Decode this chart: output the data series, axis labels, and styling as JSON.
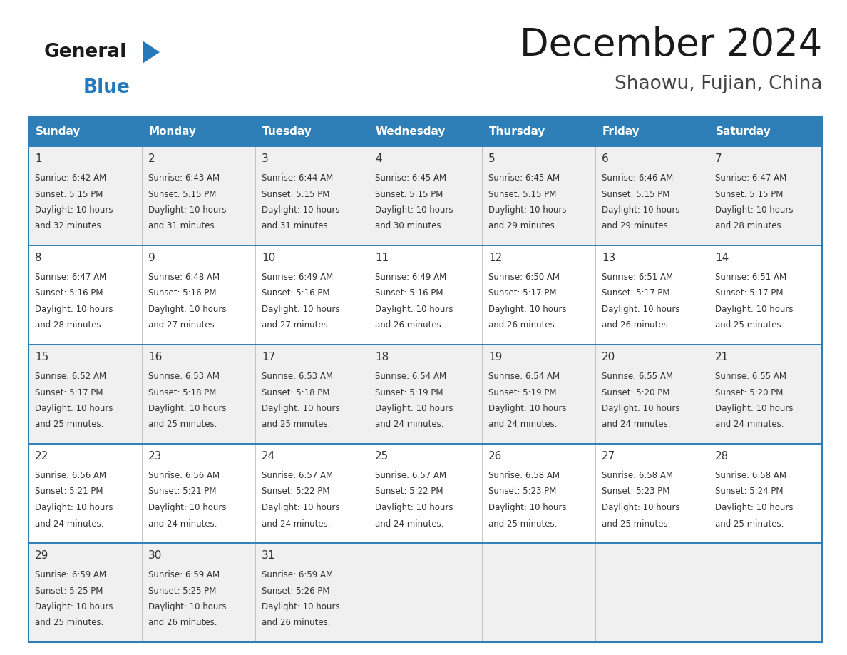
{
  "title": "December 2024",
  "subtitle": "Shaowu, Fujian, China",
  "header_bg_color": "#2E7EB8",
  "header_text_color": "#FFFFFF",
  "row_bg_even": "#F0F0F0",
  "row_bg_odd": "#FFFFFF",
  "day_names": [
    "Sunday",
    "Monday",
    "Tuesday",
    "Wednesday",
    "Thursday",
    "Friday",
    "Saturday"
  ],
  "weeks": [
    [
      {
        "day": 1,
        "sunrise": "6:42 AM",
        "sunset": "5:15 PM",
        "daylight_line1": "Daylight: 10 hours",
        "daylight_line2": "and 32 minutes."
      },
      {
        "day": 2,
        "sunrise": "6:43 AM",
        "sunset": "5:15 PM",
        "daylight_line1": "Daylight: 10 hours",
        "daylight_line2": "and 31 minutes."
      },
      {
        "day": 3,
        "sunrise": "6:44 AM",
        "sunset": "5:15 PM",
        "daylight_line1": "Daylight: 10 hours",
        "daylight_line2": "and 31 minutes."
      },
      {
        "day": 4,
        "sunrise": "6:45 AM",
        "sunset": "5:15 PM",
        "daylight_line1": "Daylight: 10 hours",
        "daylight_line2": "and 30 minutes."
      },
      {
        "day": 5,
        "sunrise": "6:45 AM",
        "sunset": "5:15 PM",
        "daylight_line1": "Daylight: 10 hours",
        "daylight_line2": "and 29 minutes."
      },
      {
        "day": 6,
        "sunrise": "6:46 AM",
        "sunset": "5:15 PM",
        "daylight_line1": "Daylight: 10 hours",
        "daylight_line2": "and 29 minutes."
      },
      {
        "day": 7,
        "sunrise": "6:47 AM",
        "sunset": "5:15 PM",
        "daylight_line1": "Daylight: 10 hours",
        "daylight_line2": "and 28 minutes."
      }
    ],
    [
      {
        "day": 8,
        "sunrise": "6:47 AM",
        "sunset": "5:16 PM",
        "daylight_line1": "Daylight: 10 hours",
        "daylight_line2": "and 28 minutes."
      },
      {
        "day": 9,
        "sunrise": "6:48 AM",
        "sunset": "5:16 PM",
        "daylight_line1": "Daylight: 10 hours",
        "daylight_line2": "and 27 minutes."
      },
      {
        "day": 10,
        "sunrise": "6:49 AM",
        "sunset": "5:16 PM",
        "daylight_line1": "Daylight: 10 hours",
        "daylight_line2": "and 27 minutes."
      },
      {
        "day": 11,
        "sunrise": "6:49 AM",
        "sunset": "5:16 PM",
        "daylight_line1": "Daylight: 10 hours",
        "daylight_line2": "and 26 minutes."
      },
      {
        "day": 12,
        "sunrise": "6:50 AM",
        "sunset": "5:17 PM",
        "daylight_line1": "Daylight: 10 hours",
        "daylight_line2": "and 26 minutes."
      },
      {
        "day": 13,
        "sunrise": "6:51 AM",
        "sunset": "5:17 PM",
        "daylight_line1": "Daylight: 10 hours",
        "daylight_line2": "and 26 minutes."
      },
      {
        "day": 14,
        "sunrise": "6:51 AM",
        "sunset": "5:17 PM",
        "daylight_line1": "Daylight: 10 hours",
        "daylight_line2": "and 25 minutes."
      }
    ],
    [
      {
        "day": 15,
        "sunrise": "6:52 AM",
        "sunset": "5:17 PM",
        "daylight_line1": "Daylight: 10 hours",
        "daylight_line2": "and 25 minutes."
      },
      {
        "day": 16,
        "sunrise": "6:53 AM",
        "sunset": "5:18 PM",
        "daylight_line1": "Daylight: 10 hours",
        "daylight_line2": "and 25 minutes."
      },
      {
        "day": 17,
        "sunrise": "6:53 AM",
        "sunset": "5:18 PM",
        "daylight_line1": "Daylight: 10 hours",
        "daylight_line2": "and 25 minutes."
      },
      {
        "day": 18,
        "sunrise": "6:54 AM",
        "sunset": "5:19 PM",
        "daylight_line1": "Daylight: 10 hours",
        "daylight_line2": "and 24 minutes."
      },
      {
        "day": 19,
        "sunrise": "6:54 AM",
        "sunset": "5:19 PM",
        "daylight_line1": "Daylight: 10 hours",
        "daylight_line2": "and 24 minutes."
      },
      {
        "day": 20,
        "sunrise": "6:55 AM",
        "sunset": "5:20 PM",
        "daylight_line1": "Daylight: 10 hours",
        "daylight_line2": "and 24 minutes."
      },
      {
        "day": 21,
        "sunrise": "6:55 AM",
        "sunset": "5:20 PM",
        "daylight_line1": "Daylight: 10 hours",
        "daylight_line2": "and 24 minutes."
      }
    ],
    [
      {
        "day": 22,
        "sunrise": "6:56 AM",
        "sunset": "5:21 PM",
        "daylight_line1": "Daylight: 10 hours",
        "daylight_line2": "and 24 minutes."
      },
      {
        "day": 23,
        "sunrise": "6:56 AM",
        "sunset": "5:21 PM",
        "daylight_line1": "Daylight: 10 hours",
        "daylight_line2": "and 24 minutes."
      },
      {
        "day": 24,
        "sunrise": "6:57 AM",
        "sunset": "5:22 PM",
        "daylight_line1": "Daylight: 10 hours",
        "daylight_line2": "and 24 minutes."
      },
      {
        "day": 25,
        "sunrise": "6:57 AM",
        "sunset": "5:22 PM",
        "daylight_line1": "Daylight: 10 hours",
        "daylight_line2": "and 24 minutes."
      },
      {
        "day": 26,
        "sunrise": "6:58 AM",
        "sunset": "5:23 PM",
        "daylight_line1": "Daylight: 10 hours",
        "daylight_line2": "and 25 minutes."
      },
      {
        "day": 27,
        "sunrise": "6:58 AM",
        "sunset": "5:23 PM",
        "daylight_line1": "Daylight: 10 hours",
        "daylight_line2": "and 25 minutes."
      },
      {
        "day": 28,
        "sunrise": "6:58 AM",
        "sunset": "5:24 PM",
        "daylight_line1": "Daylight: 10 hours",
        "daylight_line2": "and 25 minutes."
      }
    ],
    [
      {
        "day": 29,
        "sunrise": "6:59 AM",
        "sunset": "5:25 PM",
        "daylight_line1": "Daylight: 10 hours",
        "daylight_line2": "and 25 minutes."
      },
      {
        "day": 30,
        "sunrise": "6:59 AM",
        "sunset": "5:25 PM",
        "daylight_line1": "Daylight: 10 hours",
        "daylight_line2": "and 26 minutes."
      },
      {
        "day": 31,
        "sunrise": "6:59 AM",
        "sunset": "5:26 PM",
        "daylight_line1": "Daylight: 10 hours",
        "daylight_line2": "and 26 minutes."
      },
      null,
      null,
      null,
      null
    ]
  ],
  "logo_color_general": "#1a1a1a",
  "logo_color_blue": "#2479BD",
  "title_color": "#1a1a1a",
  "subtitle_color": "#444444",
  "border_color": "#2E7EB8",
  "cell_border_color": "#BBBBBB"
}
